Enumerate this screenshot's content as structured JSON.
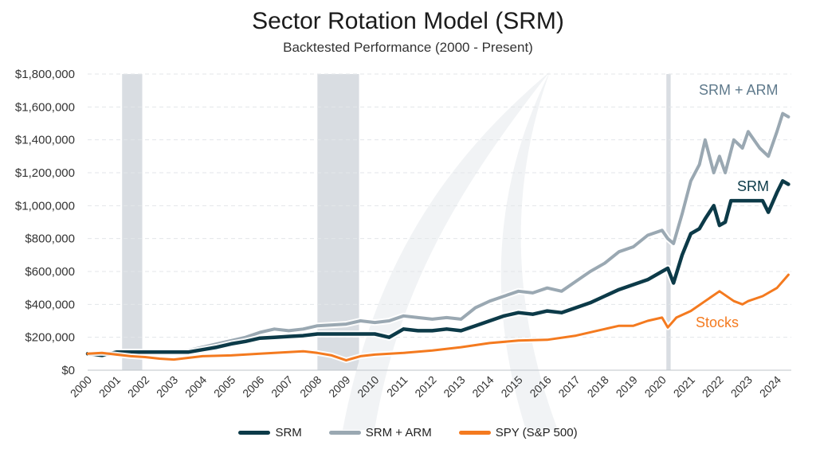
{
  "chart_data": {
    "type": "line",
    "title": "Sector Rotation Model (SRM)",
    "subtitle": "Backtested Performance (2000 - Present)",
    "x_ticks": [
      "2000",
      "2001",
      "2002",
      "2003",
      "2004",
      "2005",
      "2006",
      "2007",
      "2008",
      "2009",
      "2010",
      "2011",
      "2012",
      "2013",
      "2014",
      "2015",
      "2016",
      "2017",
      "2018",
      "2019",
      "2020",
      "2021",
      "2022",
      "2023",
      "2024"
    ],
    "y_ticks": [
      "$0",
      "$200,000",
      "$400,000",
      "$600,000",
      "$800,000",
      "$1,000,000",
      "$1,200,000",
      "$1,400,000",
      "$1,600,000",
      "$1,800,000"
    ],
    "ylim": [
      0,
      1800000
    ],
    "xlim": [
      2000,
      2024.5
    ],
    "grid": true,
    "legend_position": "bottom",
    "shaded_periods": [
      [
        2001.2,
        2001.9
      ],
      [
        2008.0,
        2009.45
      ],
      [
        2020.15,
        2020.3
      ]
    ],
    "series": [
      {
        "name": "SRM",
        "color": "#0c3a48",
        "x": [
          2000,
          2000.5,
          2001,
          2002,
          2003,
          2003.5,
          2004,
          2004.5,
          2005,
          2005.5,
          2006,
          2006.5,
          2007,
          2007.5,
          2008,
          2009,
          2009.5,
          2010,
          2010.5,
          2011,
          2011.5,
          2012,
          2012.5,
          2013,
          2013.5,
          2014,
          2014.5,
          2015,
          2015.5,
          2016,
          2016.5,
          2017,
          2017.5,
          2018,
          2018.5,
          2019,
          2019.5,
          2020,
          2020.2,
          2020.4,
          2020.7,
          2021,
          2021.3,
          2021.5,
          2021.8,
          2022,
          2022.2,
          2022.4,
          2022.6,
          2023,
          2023.5,
          2023.7,
          2024,
          2024.2,
          2024.4
        ],
        "values": [
          100000,
          90000,
          110000,
          110000,
          110000,
          110000,
          125000,
          140000,
          160000,
          175000,
          195000,
          200000,
          205000,
          210000,
          220000,
          220000,
          220000,
          220000,
          200000,
          250000,
          240000,
          240000,
          250000,
          240000,
          270000,
          300000,
          330000,
          350000,
          340000,
          360000,
          350000,
          380000,
          410000,
          450000,
          490000,
          520000,
          550000,
          600000,
          620000,
          530000,
          700000,
          830000,
          860000,
          920000,
          1000000,
          880000,
          900000,
          1030000,
          1030000,
          1030000,
          1030000,
          960000,
          1080000,
          1150000,
          1130000
        ]
      },
      {
        "name": "SRM + ARM",
        "color": "#9aa8b2",
        "x": [
          2000,
          2000.5,
          2001,
          2002,
          2003,
          2003.5,
          2004,
          2004.5,
          2005,
          2005.5,
          2006,
          2006.5,
          2007,
          2007.5,
          2008,
          2009,
          2009.5,
          2010,
          2010.5,
          2011,
          2011.5,
          2012,
          2012.5,
          2013,
          2013.5,
          2014,
          2014.5,
          2015,
          2015.5,
          2016,
          2016.5,
          2017,
          2017.5,
          2018,
          2018.5,
          2019,
          2019.5,
          2020,
          2020.2,
          2020.4,
          2020.7,
          2021,
          2021.3,
          2021.5,
          2021.8,
          2022,
          2022.2,
          2022.5,
          2022.8,
          2023,
          2023.4,
          2023.7,
          2024,
          2024.2,
          2024.4
        ],
        "values": [
          100000,
          95000,
          110000,
          110000,
          110000,
          120000,
          140000,
          160000,
          180000,
          200000,
          230000,
          250000,
          240000,
          250000,
          270000,
          280000,
          300000,
          290000,
          300000,
          330000,
          320000,
          310000,
          320000,
          310000,
          380000,
          420000,
          450000,
          480000,
          470000,
          500000,
          480000,
          540000,
          600000,
          650000,
          720000,
          750000,
          820000,
          850000,
          800000,
          770000,
          950000,
          1150000,
          1250000,
          1400000,
          1200000,
          1300000,
          1200000,
          1400000,
          1350000,
          1450000,
          1350000,
          1300000,
          1450000,
          1560000,
          1540000
        ]
      },
      {
        "name": "SPY (S&P 500)",
        "color": "#f47a1f",
        "x": [
          2000,
          2000.5,
          2001,
          2001.5,
          2002,
          2002.5,
          2003,
          2003.5,
          2004,
          2005,
          2006,
          2007,
          2007.5,
          2008,
          2008.5,
          2009,
          2009.2,
          2009.5,
          2010,
          2011,
          2012,
          2013,
          2014,
          2015,
          2016,
          2017,
          2018,
          2018.5,
          2019,
          2019.5,
          2020,
          2020.2,
          2020.5,
          2021,
          2021.5,
          2022,
          2022.5,
          2022.8,
          2023,
          2023.5,
          2024,
          2024.4
        ],
        "values": [
          100000,
          105000,
          95000,
          85000,
          80000,
          70000,
          65000,
          75000,
          85000,
          90000,
          100000,
          110000,
          115000,
          105000,
          90000,
          60000,
          70000,
          85000,
          95000,
          105000,
          120000,
          140000,
          165000,
          180000,
          185000,
          210000,
          250000,
          270000,
          270000,
          300000,
          320000,
          260000,
          320000,
          360000,
          420000,
          480000,
          420000,
          400000,
          420000,
          450000,
          500000,
          580000
        ]
      }
    ],
    "annotations": [
      {
        "text": "SRM + ARM",
        "color": "#5f7a8c"
      },
      {
        "text": "SRM",
        "color": "#0c3a48"
      },
      {
        "text": "Stocks",
        "color": "#f47a1f"
      }
    ]
  }
}
